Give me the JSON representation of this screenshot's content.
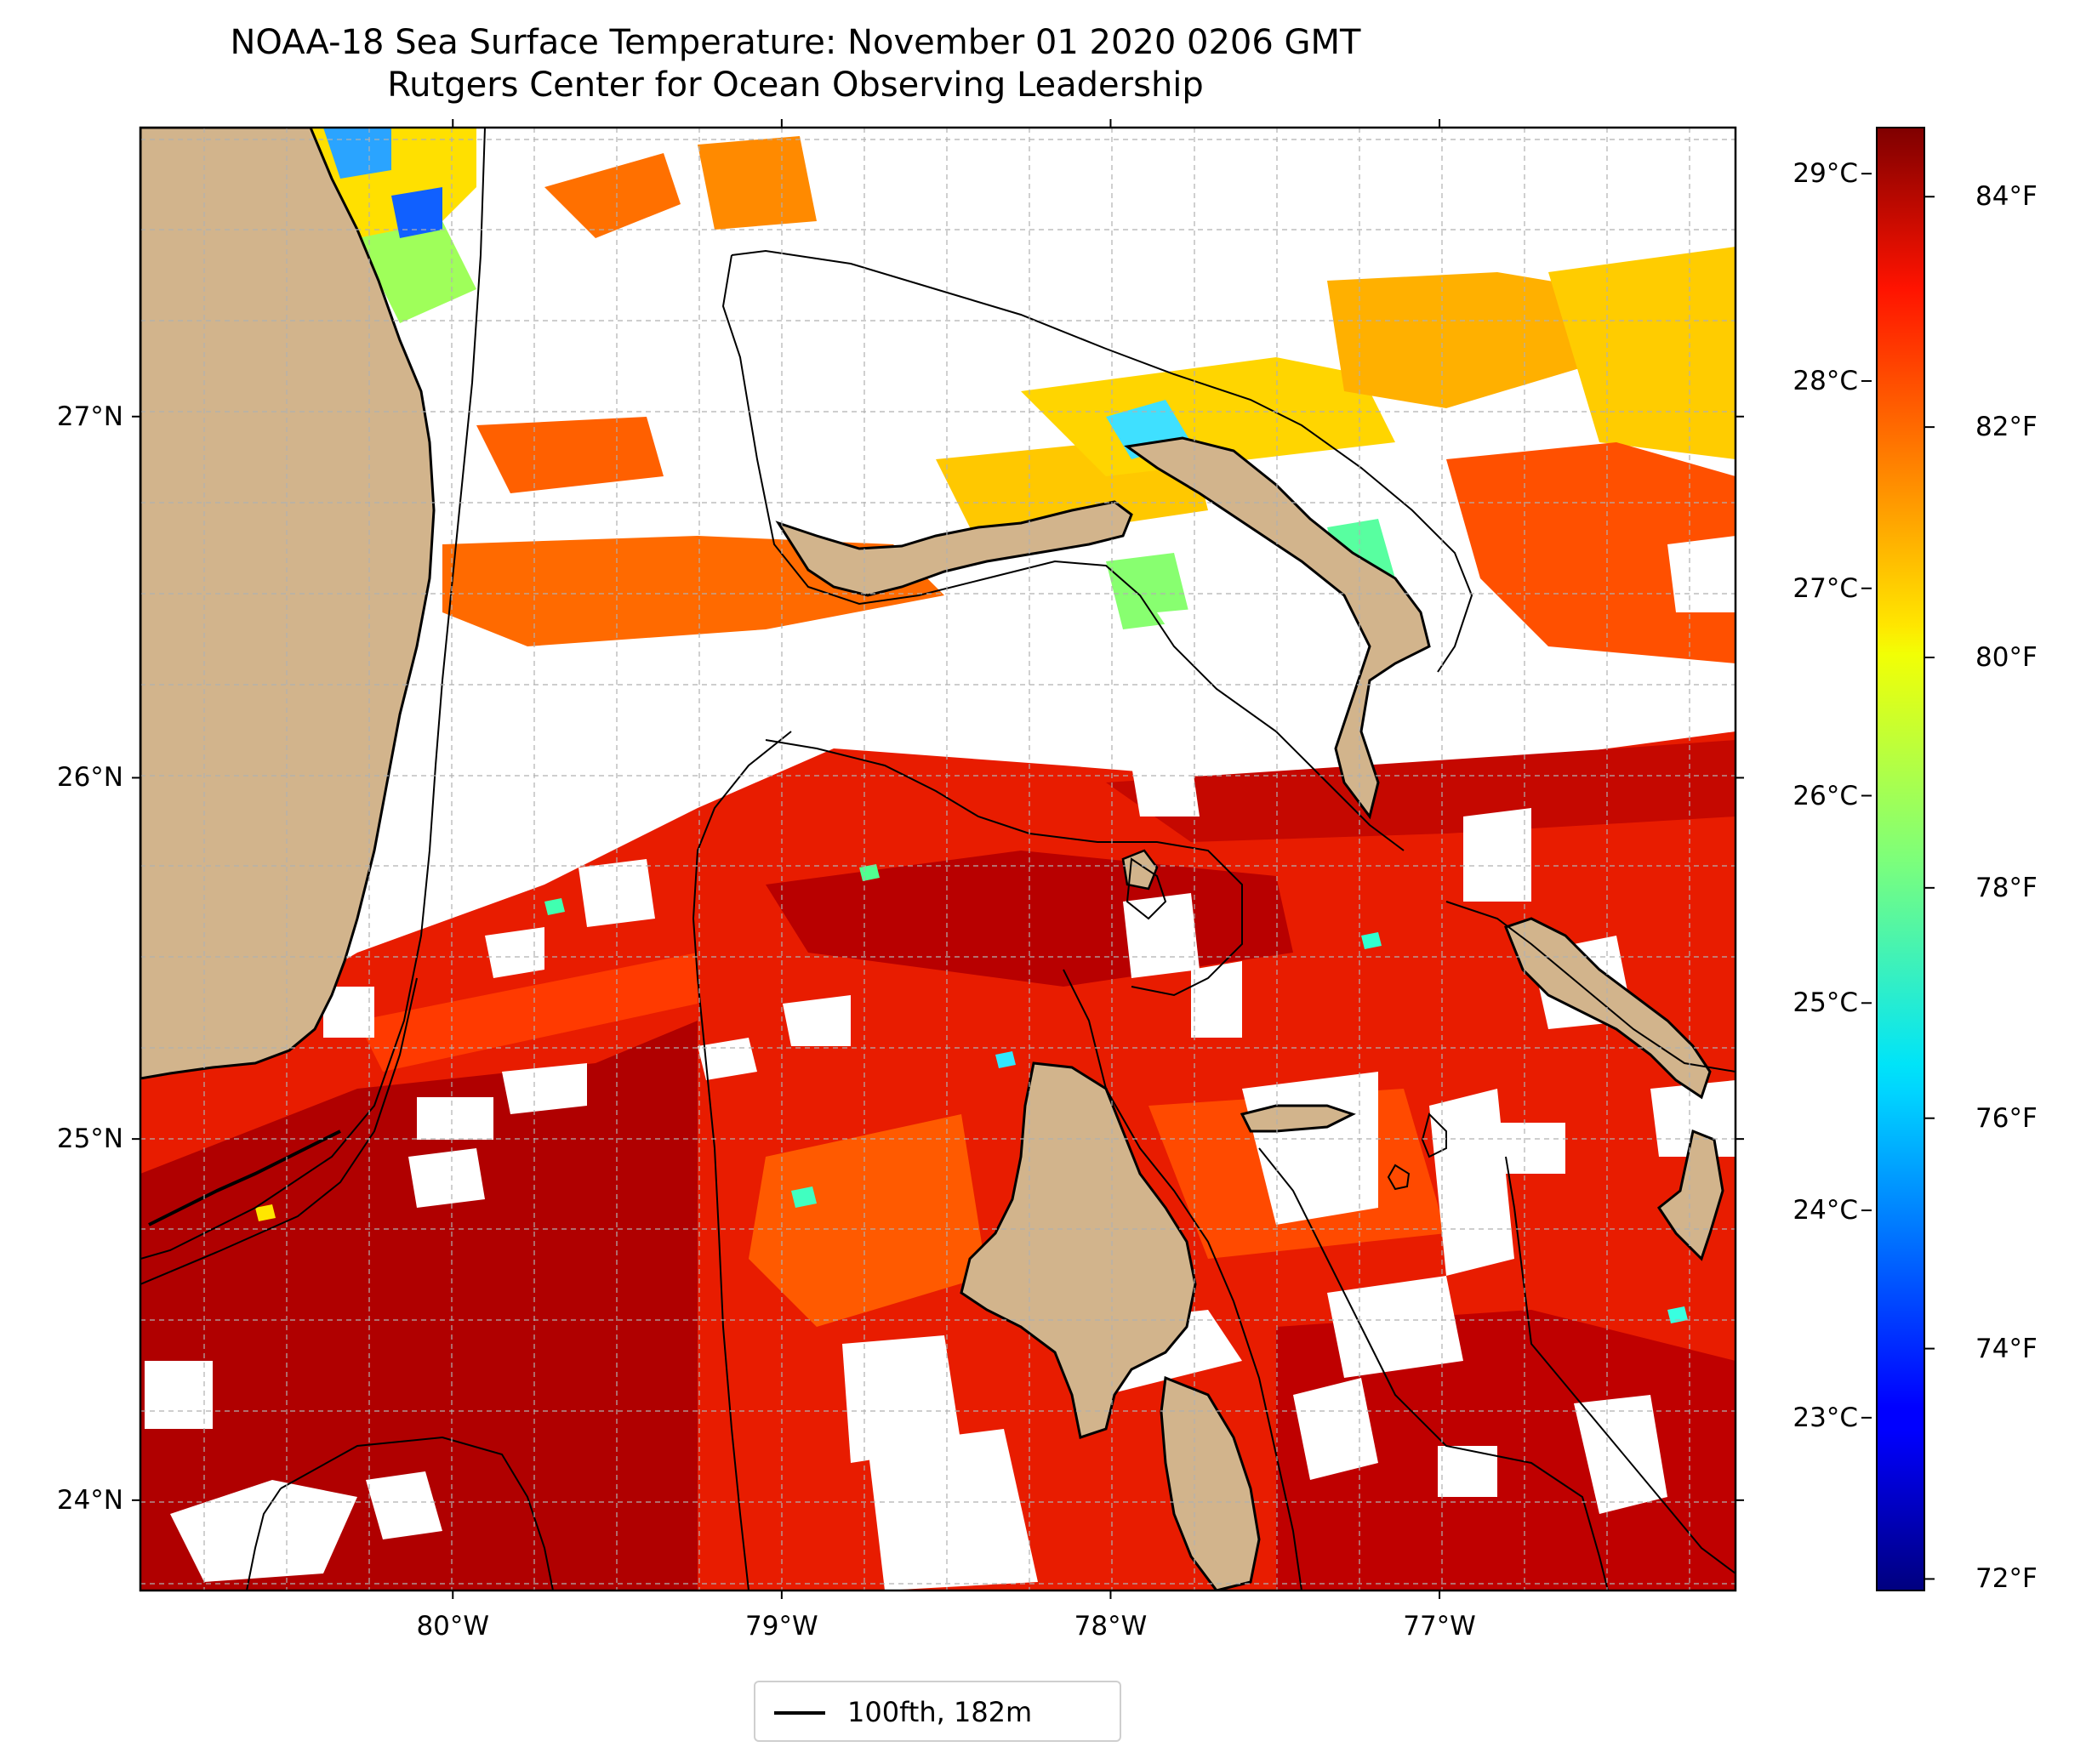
{
  "title": "NOAA-18 Sea Surface Temperature: November 01 2020 0206 GMT",
  "subtitle": "Rutgers Center for Ocean Observing Leadership",
  "map": {
    "lon_range": [
      -80.95,
      -76.1
    ],
    "lat_range": [
      23.75,
      27.8
    ],
    "lat_ticks": [
      {
        "value": 27,
        "label": "27°N"
      },
      {
        "value": 26,
        "label": "26°N"
      },
      {
        "value": 25,
        "label": "25°N"
      },
      {
        "value": 24,
        "label": "24°N"
      }
    ],
    "lon_ticks": [
      {
        "value": -80,
        "label": "80°W"
      },
      {
        "value": -79,
        "label": "79°W"
      },
      {
        "value": -78,
        "label": "78°W"
      },
      {
        "value": -77,
        "label": "77°W"
      }
    ],
    "gridlines": true,
    "land_color": "#d2b48c",
    "lake_color": "#9dbde5",
    "contour_color": "#000000"
  },
  "colorbar": {
    "colormap": "jet",
    "range_f": [
      71.9,
      84.6
    ],
    "fahrenheit_ticks": [
      {
        "value": 84,
        "label": "84°F"
      },
      {
        "value": 82,
        "label": "82°F"
      },
      {
        "value": 80,
        "label": "80°F"
      },
      {
        "value": 78,
        "label": "78°F"
      },
      {
        "value": 76,
        "label": "76°F"
      },
      {
        "value": 74,
        "label": "74°F"
      },
      {
        "value": 72,
        "label": "72°F"
      }
    ],
    "celsius_ticks": [
      {
        "value": 29,
        "label": "29°C"
      },
      {
        "value": 28,
        "label": "28°C"
      },
      {
        "value": 27,
        "label": "27°C"
      },
      {
        "value": 26,
        "label": "26°C"
      },
      {
        "value": 25,
        "label": "25°C"
      },
      {
        "value": 24,
        "label": "24°C"
      },
      {
        "value": 23,
        "label": "23°C"
      }
    ]
  },
  "legend": {
    "entry": "100fth, 182m"
  }
}
